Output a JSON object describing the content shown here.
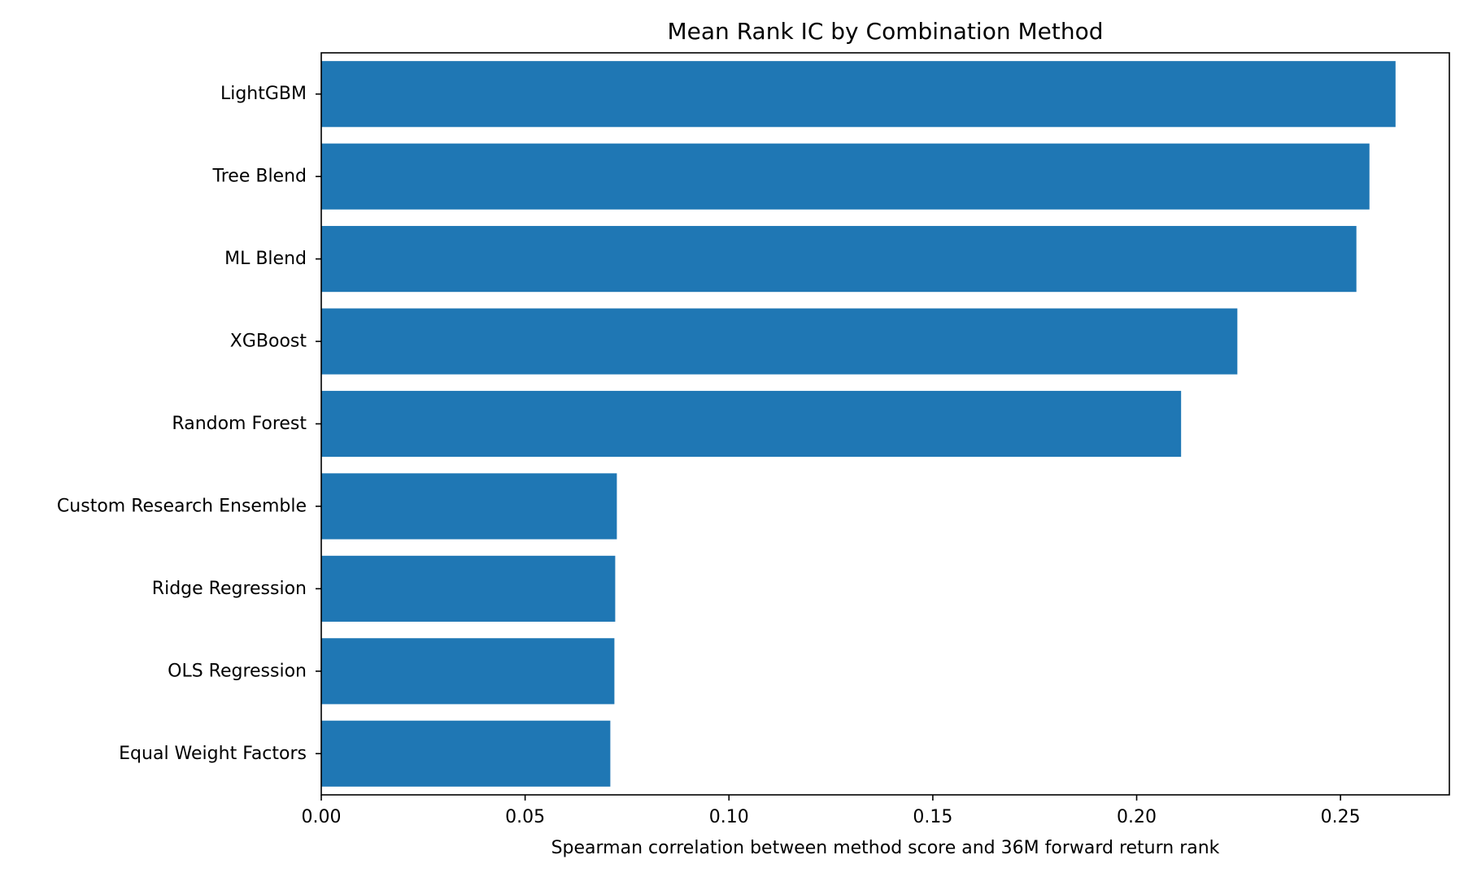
{
  "chart_data": {
    "type": "bar",
    "orientation": "horizontal",
    "title": "Mean Rank IC by Combination Method",
    "xlabel": "Spearman correlation between method score and 36M forward return rank",
    "ylabel": "",
    "categories": [
      "LightGBM",
      "Tree Blend",
      "ML Blend",
      "XGBoost",
      "Random Forest",
      "Custom Research Ensemble",
      "Ridge Regression",
      "OLS Regression",
      "Equal Weight Factors"
    ],
    "values": [
      0.2635,
      0.2571,
      0.2539,
      0.2247,
      0.2109,
      0.0725,
      0.0721,
      0.0719,
      0.0709
    ],
    "xlim": [
      0.0,
      0.2767
    ],
    "xticks": [
      0.0,
      0.05,
      0.1,
      0.15,
      0.2,
      0.25
    ],
    "xtick_labels": [
      "0.00",
      "0.05",
      "0.10",
      "0.15",
      "0.20",
      "0.25"
    ],
    "grid": false,
    "legend": "none",
    "bar_color": "#1f77b4"
  }
}
